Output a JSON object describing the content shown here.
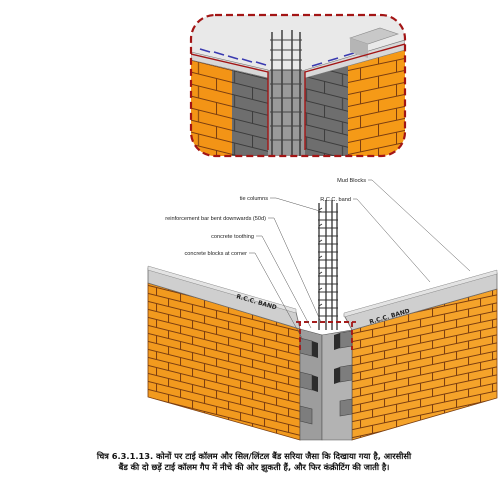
{
  "labels": {
    "mud_blocks": "Mud Blocks",
    "rcc_band": "R.C.C. band",
    "tie_columns": "tie columns",
    "reinforcement_bar": "reinforcement bar bent downwards (50d)",
    "concrete_toothing": "concrete toothing",
    "concrete_blocks": "concrete blocks at corner"
  },
  "band_text": "R.C.C. BAND",
  "caption": {
    "line1": "चित्र 6.3.1.13. कोनों पर टाई कॉलम और सिल/लिंटल बैंड सरिया जैसा कि दिखाया गया है, आरसीसी",
    "line2": "बैंड की दो छड़ें टाई कॉलम गैप में नीचे की ओर झुकती हैं, और फिर कंक्रीटिंग की जाती है।"
  },
  "colors": {
    "brick": "#f29a1e",
    "mortar": "#7a3d10",
    "concrete": "#8f8f8f",
    "band": "#c9c9c9",
    "dashed_highlight": "#a31515",
    "rebar": "#3a3a3a"
  }
}
